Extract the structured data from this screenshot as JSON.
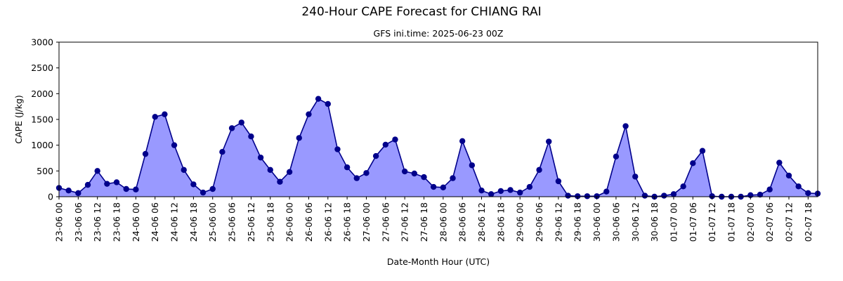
{
  "chart_data": {
    "type": "area",
    "title": "240-Hour CAPE Forecast for CHIANG RAI",
    "subtitle": "GFS ini.time: 2025-06-23 00Z",
    "xlabel": "Date-Month Hour (UTC)",
    "ylabel": "CAPE (J/kg)",
    "ylim": [
      0,
      3000
    ],
    "yticks": [
      0,
      500,
      1000,
      1500,
      2000,
      2500,
      3000
    ],
    "xticks": [
      "23-06 00",
      "23-06 06",
      "23-06 12",
      "23-06 18",
      "24-06 00",
      "24-06 06",
      "24-06 12",
      "24-06 18",
      "25-06 00",
      "25-06 06",
      "25-06 12",
      "25-06 18",
      "26-06 00",
      "26-06 06",
      "26-06 12",
      "26-06 18",
      "27-06 00",
      "27-06 06",
      "27-06 12",
      "27-06 18",
      "28-06 00",
      "28-06 06",
      "28-06 12",
      "28-06 18",
      "29-06 00",
      "29-06 06",
      "29-06 12",
      "29-06 18",
      "30-06 00",
      "30-06 06",
      "30-06 12",
      "30-06 18",
      "01-07 00",
      "01-07 06",
      "01-07 12",
      "01-07 18",
      "02-07 00",
      "02-07 06",
      "02-07 12",
      "02-07 18"
    ],
    "interval_hours": 3,
    "grid": false,
    "colors": {
      "line": "#00008b",
      "fill": "#9999ff",
      "marker": "#00008b"
    },
    "series": [
      {
        "values": [
          170,
          120,
          70,
          230,
          500,
          250,
          280,
          150,
          140,
          830,
          1550,
          1600,
          1000,
          520,
          240,
          80,
          150,
          870,
          1330,
          1440,
          1170,
          760,
          520,
          290,
          480,
          1140,
          1600,
          1900,
          1800,
          920,
          570,
          360,
          460,
          790,
          1010,
          1110,
          490,
          450,
          380,
          190,
          180,
          360,
          1080,
          610,
          120,
          50,
          110,
          130,
          80,
          190,
          520,
          1070,
          300,
          20,
          10,
          10,
          10,
          100,
          780,
          1370,
          390,
          20,
          0,
          20,
          50,
          200,
          650,
          890,
          10,
          0,
          0,
          0,
          30,
          40,
          140,
          660,
          410,
          200,
          70,
          60
        ]
      }
    ]
  }
}
